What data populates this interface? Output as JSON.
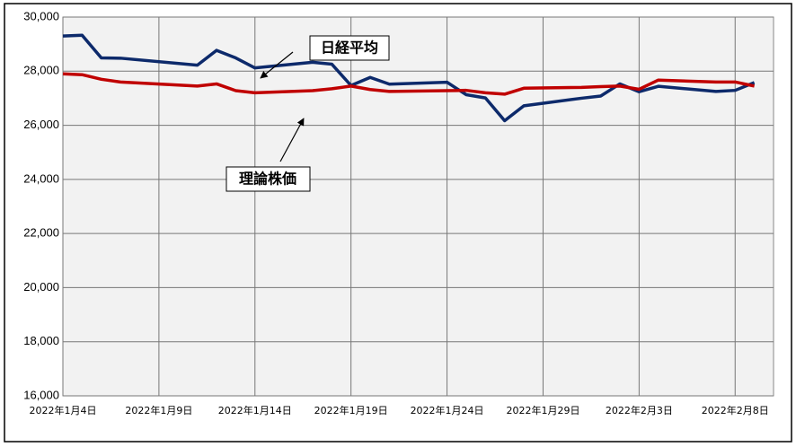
{
  "chart_data": {
    "type": "line",
    "x": [
      "2022-01-04",
      "2022-01-05",
      "2022-01-06",
      "2022-01-07",
      "2022-01-11",
      "2022-01-12",
      "2022-01-13",
      "2022-01-14",
      "2022-01-17",
      "2022-01-18",
      "2022-01-19",
      "2022-01-20",
      "2022-01-21",
      "2022-01-24",
      "2022-01-25",
      "2022-01-26",
      "2022-01-27",
      "2022-01-28",
      "2022-01-31",
      "2022-02-01",
      "2022-02-02",
      "2022-02-03",
      "2022-02-04",
      "2022-02-07",
      "2022-02-08",
      "2022-02-09"
    ],
    "series": [
      {
        "name": "日経平均",
        "color": "#0d2a6b",
        "values": [
          29300,
          29330,
          28490,
          28480,
          28220,
          28770,
          28490,
          28120,
          28330,
          28260,
          27470,
          27770,
          27520,
          27590,
          27130,
          27010,
          26170,
          26720,
          27000,
          27080,
          27530,
          27240,
          27440,
          27250,
          27290,
          27580
        ]
      },
      {
        "name": "理論株価",
        "color": "#c00000",
        "values": [
          27900,
          27870,
          27700,
          27600,
          27450,
          27530,
          27280,
          27200,
          27280,
          27350,
          27450,
          27320,
          27250,
          27280,
          27290,
          27200,
          27150,
          27370,
          27400,
          27430,
          27450,
          27330,
          27670,
          27600,
          27600,
          27450
        ]
      }
    ],
    "xlim": [
      "2022-01-04",
      "2022-02-10"
    ],
    "xticks": [
      {
        "value": "2022-01-04",
        "label": "2022年1月4日"
      },
      {
        "value": "2022-01-09",
        "label": "2022年1月9日"
      },
      {
        "value": "2022-01-14",
        "label": "2022年1月14日"
      },
      {
        "value": "2022-01-19",
        "label": "2022年1月19日"
      },
      {
        "value": "2022-01-24",
        "label": "2022年1月24日"
      },
      {
        "value": "2022-01-29",
        "label": "2022年1月29日"
      },
      {
        "value": "2022-02-03",
        "label": "2022年2月3日"
      },
      {
        "value": "2022-02-08",
        "label": "2022年2月8日"
      }
    ],
    "ylim": [
      16000,
      30000
    ],
    "yticks": [
      {
        "value": 16000,
        "label": "16,000"
      },
      {
        "value": 18000,
        "label": "18,000"
      },
      {
        "value": 20000,
        "label": "20,000"
      },
      {
        "value": 22000,
        "label": "22,000"
      },
      {
        "value": 24000,
        "label": "24,000"
      },
      {
        "value": 26000,
        "label": "26,000"
      },
      {
        "value": 28000,
        "label": "28,000"
      },
      {
        "value": 30000,
        "label": "30,000"
      }
    ],
    "grid": true
  }
}
